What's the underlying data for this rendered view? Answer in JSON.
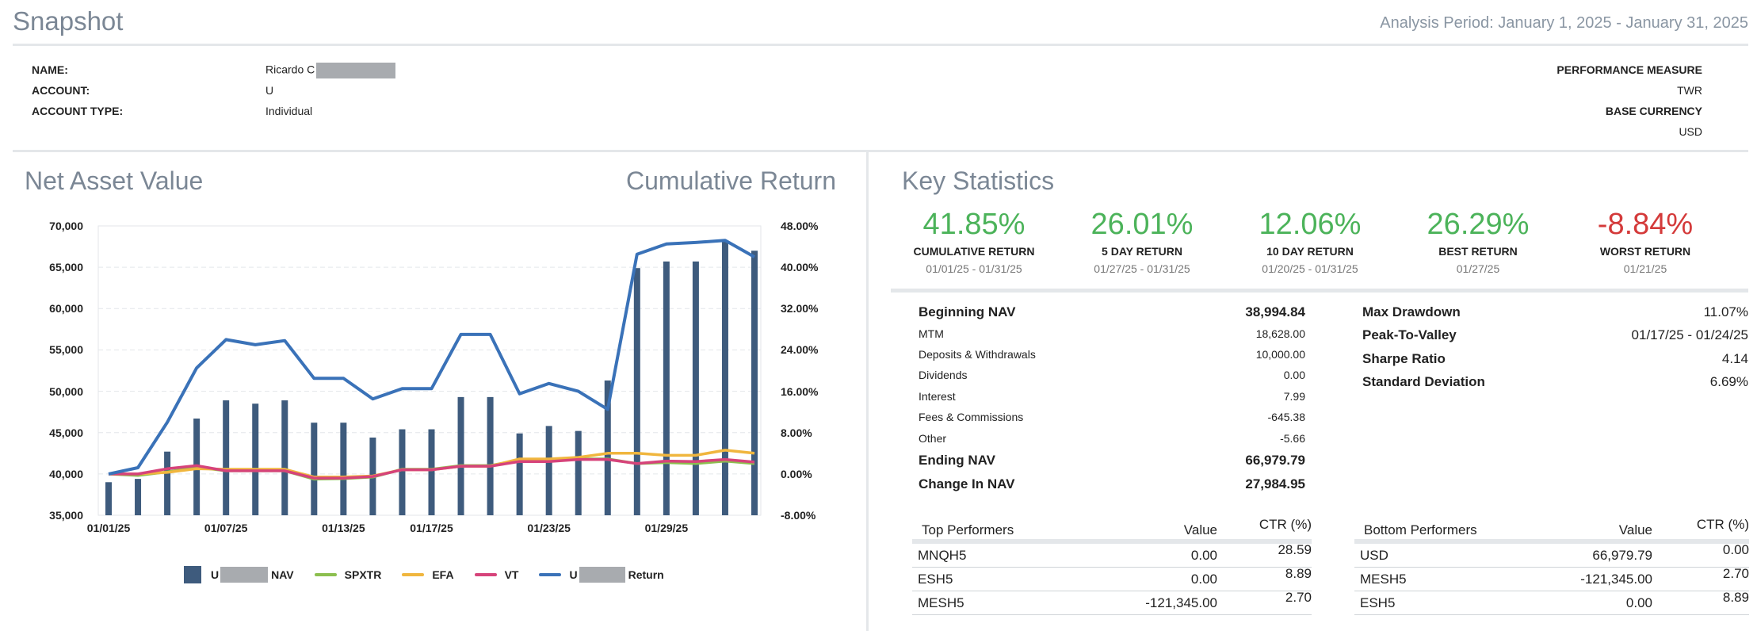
{
  "header": {
    "title": "Snapshot",
    "period": "Analysis Period: January 1, 2025 - January 31, 2025"
  },
  "account": {
    "name_label": "NAME:",
    "name_value": "Ricardo C",
    "account_label": "ACCOUNT:",
    "account_value": "U",
    "type_label": "ACCOUNT TYPE:",
    "type_value": "Individual",
    "perf_label": "PERFORMANCE MEASURE",
    "perf_value": "TWR",
    "currency_label": "BASE CURRENCY",
    "currency_value": "USD"
  },
  "chart": {
    "left_title": "Net Asset Value",
    "right_title": "Cumulative Return"
  },
  "chart_data": {
    "type": "bar",
    "title": "Net Asset Value / Cumulative Return",
    "x_ticks": [
      "01/01/25",
      "01/07/25",
      "01/13/25",
      "01/17/25",
      "01/23/25",
      "01/29/25"
    ],
    "y_ticks": [
      "70,000",
      "65,000",
      "60,000",
      "55,000",
      "50,000",
      "45,000",
      "40,000",
      "35,000"
    ],
    "y2_ticks": [
      "48.00%",
      "40.00%",
      "32.00%",
      "24.00%",
      "16.00%",
      "8.00%",
      "0.00%",
      "-8.00%"
    ],
    "ylim": [
      35000,
      70000
    ],
    "y2lim": [
      -8,
      48
    ],
    "nav": [
      39000,
      39400,
      42700,
      46700,
      48900,
      48500,
      48900,
      46200,
      46200,
      44400,
      45400,
      45400,
      49300,
      49300,
      44900,
      45800,
      45200,
      51300,
      64900,
      65700,
      65700,
      68100,
      67000
    ],
    "series": [
      {
        "name": "SPXTR",
        "color": "#8cbf4f",
        "values": [
          0.0,
          -0.3,
          0.4,
          1.3,
          0.6,
          0.6,
          0.6,
          -1.0,
          -0.9,
          -0.6,
          0.9,
          0.9,
          1.6,
          1.6,
          2.7,
          2.6,
          2.9,
          2.9,
          2.0,
          2.2,
          2.0,
          2.5,
          2.0
        ]
      },
      {
        "name": "EFA",
        "color": "#f0b63e",
        "values": [
          0.0,
          0.0,
          0.3,
          1.0,
          0.9,
          0.9,
          0.9,
          -0.6,
          -0.6,
          -0.4,
          0.8,
          0.8,
          1.5,
          1.5,
          2.9,
          2.9,
          3.2,
          4.0,
          4.0,
          3.6,
          3.6,
          4.6,
          4.0
        ]
      },
      {
        "name": "VT",
        "color": "#d6437a",
        "values": [
          0.0,
          0.0,
          1.0,
          1.6,
          0.6,
          0.6,
          0.6,
          -0.8,
          -0.8,
          -0.5,
          0.8,
          0.8,
          1.5,
          1.5,
          2.4,
          2.4,
          2.8,
          2.8,
          2.0,
          2.5,
          2.4,
          2.8,
          2.3
        ]
      },
      {
        "name": "Return",
        "color": "#3a72b8",
        "values": [
          0.0,
          1.2,
          10.0,
          20.5,
          26.0,
          25.0,
          25.8,
          18.5,
          18.5,
          14.5,
          16.5,
          16.5,
          27.0,
          27.0,
          15.5,
          17.5,
          16.0,
          12.5,
          42.5,
          44.5,
          44.8,
          45.2,
          42.0
        ]
      }
    ],
    "legend": [
      {
        "label": "U",
        "suffix": "NAV",
        "kind": "box",
        "color": "#3e5b7d"
      },
      {
        "label": "SPXTR",
        "kind": "line",
        "color": "#8cbf4f"
      },
      {
        "label": "EFA",
        "kind": "line",
        "color": "#f0b63e"
      },
      {
        "label": "VT",
        "kind": "line",
        "color": "#d6437a"
      },
      {
        "label": "U",
        "suffix": "Return",
        "kind": "line",
        "color": "#3a72b8"
      }
    ]
  },
  "key_stats": {
    "title": "Key Statistics",
    "kpis": [
      {
        "value": "41.85%",
        "label": "CUMULATIVE RETURN",
        "sub": "01/01/25 - 01/31/25"
      },
      {
        "value": "26.01%",
        "label": "5 DAY RETURN",
        "sub": "01/27/25 - 01/31/25"
      },
      {
        "value": "12.06%",
        "label": "10 DAY RETURN",
        "sub": "01/20/25 - 01/31/25"
      },
      {
        "value": "26.29%",
        "label": "BEST RETURN",
        "sub": "01/27/25"
      },
      {
        "value": "-8.84%",
        "label": "WORST RETURN",
        "sub": "01/21/25"
      }
    ],
    "nav_rows": [
      {
        "label": "Beginning NAV",
        "value": "38,994.84",
        "big": true
      },
      {
        "label": "MTM",
        "value": "18,628.00"
      },
      {
        "label": "Deposits & Withdrawals",
        "value": "10,000.00"
      },
      {
        "label": "Dividends",
        "value": "0.00"
      },
      {
        "label": "Interest",
        "value": "7.99"
      },
      {
        "label": "Fees & Commissions",
        "value": "-645.38"
      },
      {
        "label": "Other",
        "value": "-5.66"
      },
      {
        "label": "Ending NAV",
        "value": "66,979.79",
        "big": true
      },
      {
        "label": "Change In NAV",
        "value": "27,984.95",
        "big": true
      }
    ],
    "risk_rows": [
      {
        "label": "Max Drawdown",
        "value": "11.07%"
      },
      {
        "label": "Peak-To-Valley",
        "value": "01/17/25 - 01/24/25"
      },
      {
        "label": "Sharpe Ratio",
        "value": "4.14"
      },
      {
        "label": "Standard Deviation",
        "value": "6.69%"
      }
    ]
  },
  "top_performers": {
    "headers": [
      "Top Performers",
      "Value",
      "CTR (%)"
    ],
    "rows": [
      [
        "MNQH5",
        "0.00",
        "28.59"
      ],
      [
        "ESH5",
        "0.00",
        "8.89"
      ],
      [
        "MESH5",
        "-121,345.00",
        "2.70"
      ]
    ]
  },
  "bottom_performers": {
    "headers": [
      "Bottom Performers",
      "Value",
      "CTR (%)"
    ],
    "rows": [
      [
        "USD",
        "66,979.79",
        "0.00"
      ],
      [
        "MESH5",
        "-121,345.00",
        "2.70"
      ],
      [
        "ESH5",
        "0.00",
        "8.89"
      ]
    ]
  }
}
